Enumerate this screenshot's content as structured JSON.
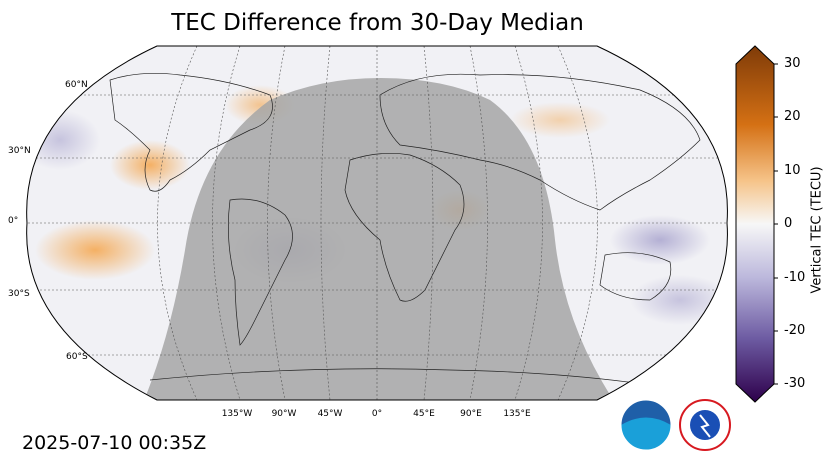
{
  "title": "TEC Difference from 30-Day Median",
  "timestamp": "2025-07-10 00:35Z",
  "lat_labels": [
    "60°N",
    "30°N",
    "0°",
    "30°S",
    "60°S"
  ],
  "lon_labels": [
    "135°W",
    "90°W",
    "45°W",
    "0°",
    "45°E",
    "90°E",
    "135°E"
  ],
  "colorbar": {
    "label": "Vertical TEC (TECU)",
    "ticks": [
      "30",
      "20",
      "10",
      "0",
      "-10",
      "-20",
      "-30"
    ],
    "range": [
      -30,
      30
    ],
    "colors": {
      "positive_max": "#7f3b08",
      "positive_mid": "#e08214",
      "neutral": "#f7f7f7",
      "negative_mid": "#8073ac",
      "negative_max": "#2d004b"
    }
  },
  "logos": {
    "noaa_text": "NOAA",
    "nws_text": "NATIONAL WEATHER SERVICE"
  },
  "overlay_color": "#a6a6a6"
}
